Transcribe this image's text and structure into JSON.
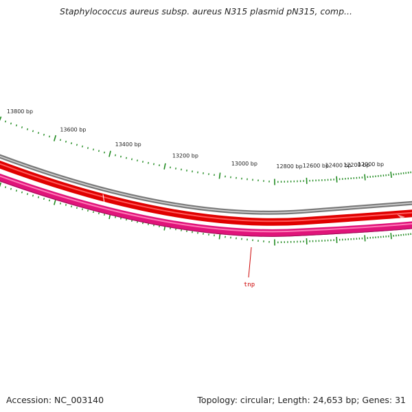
{
  "title": "Staphylococcus aureus subsp. aureus N315 plasmid pN315, comp...",
  "accession": "Accession: NC_003140",
  "topology_info": "Topology: circular; Length: 24,653 bp; Genes: 31",
  "colors": {
    "backbone": "#7d7d7d",
    "forward_cds": "#e00000",
    "reverse_cds": "#e0147a",
    "tick": "#1f8a1f",
    "gene_label": "#cc0000"
  },
  "scale_labels": [
    "13800 bp",
    "13600 bp",
    "13400 bp",
    "13200 bp",
    "13000 bp",
    "12800 bp",
    "12600 bp",
    "12400 bp",
    "12200 bp",
    "12000 bp"
  ],
  "gene_labels": [
    {
      "name": "tnp",
      "strand": "reverse"
    }
  ]
}
